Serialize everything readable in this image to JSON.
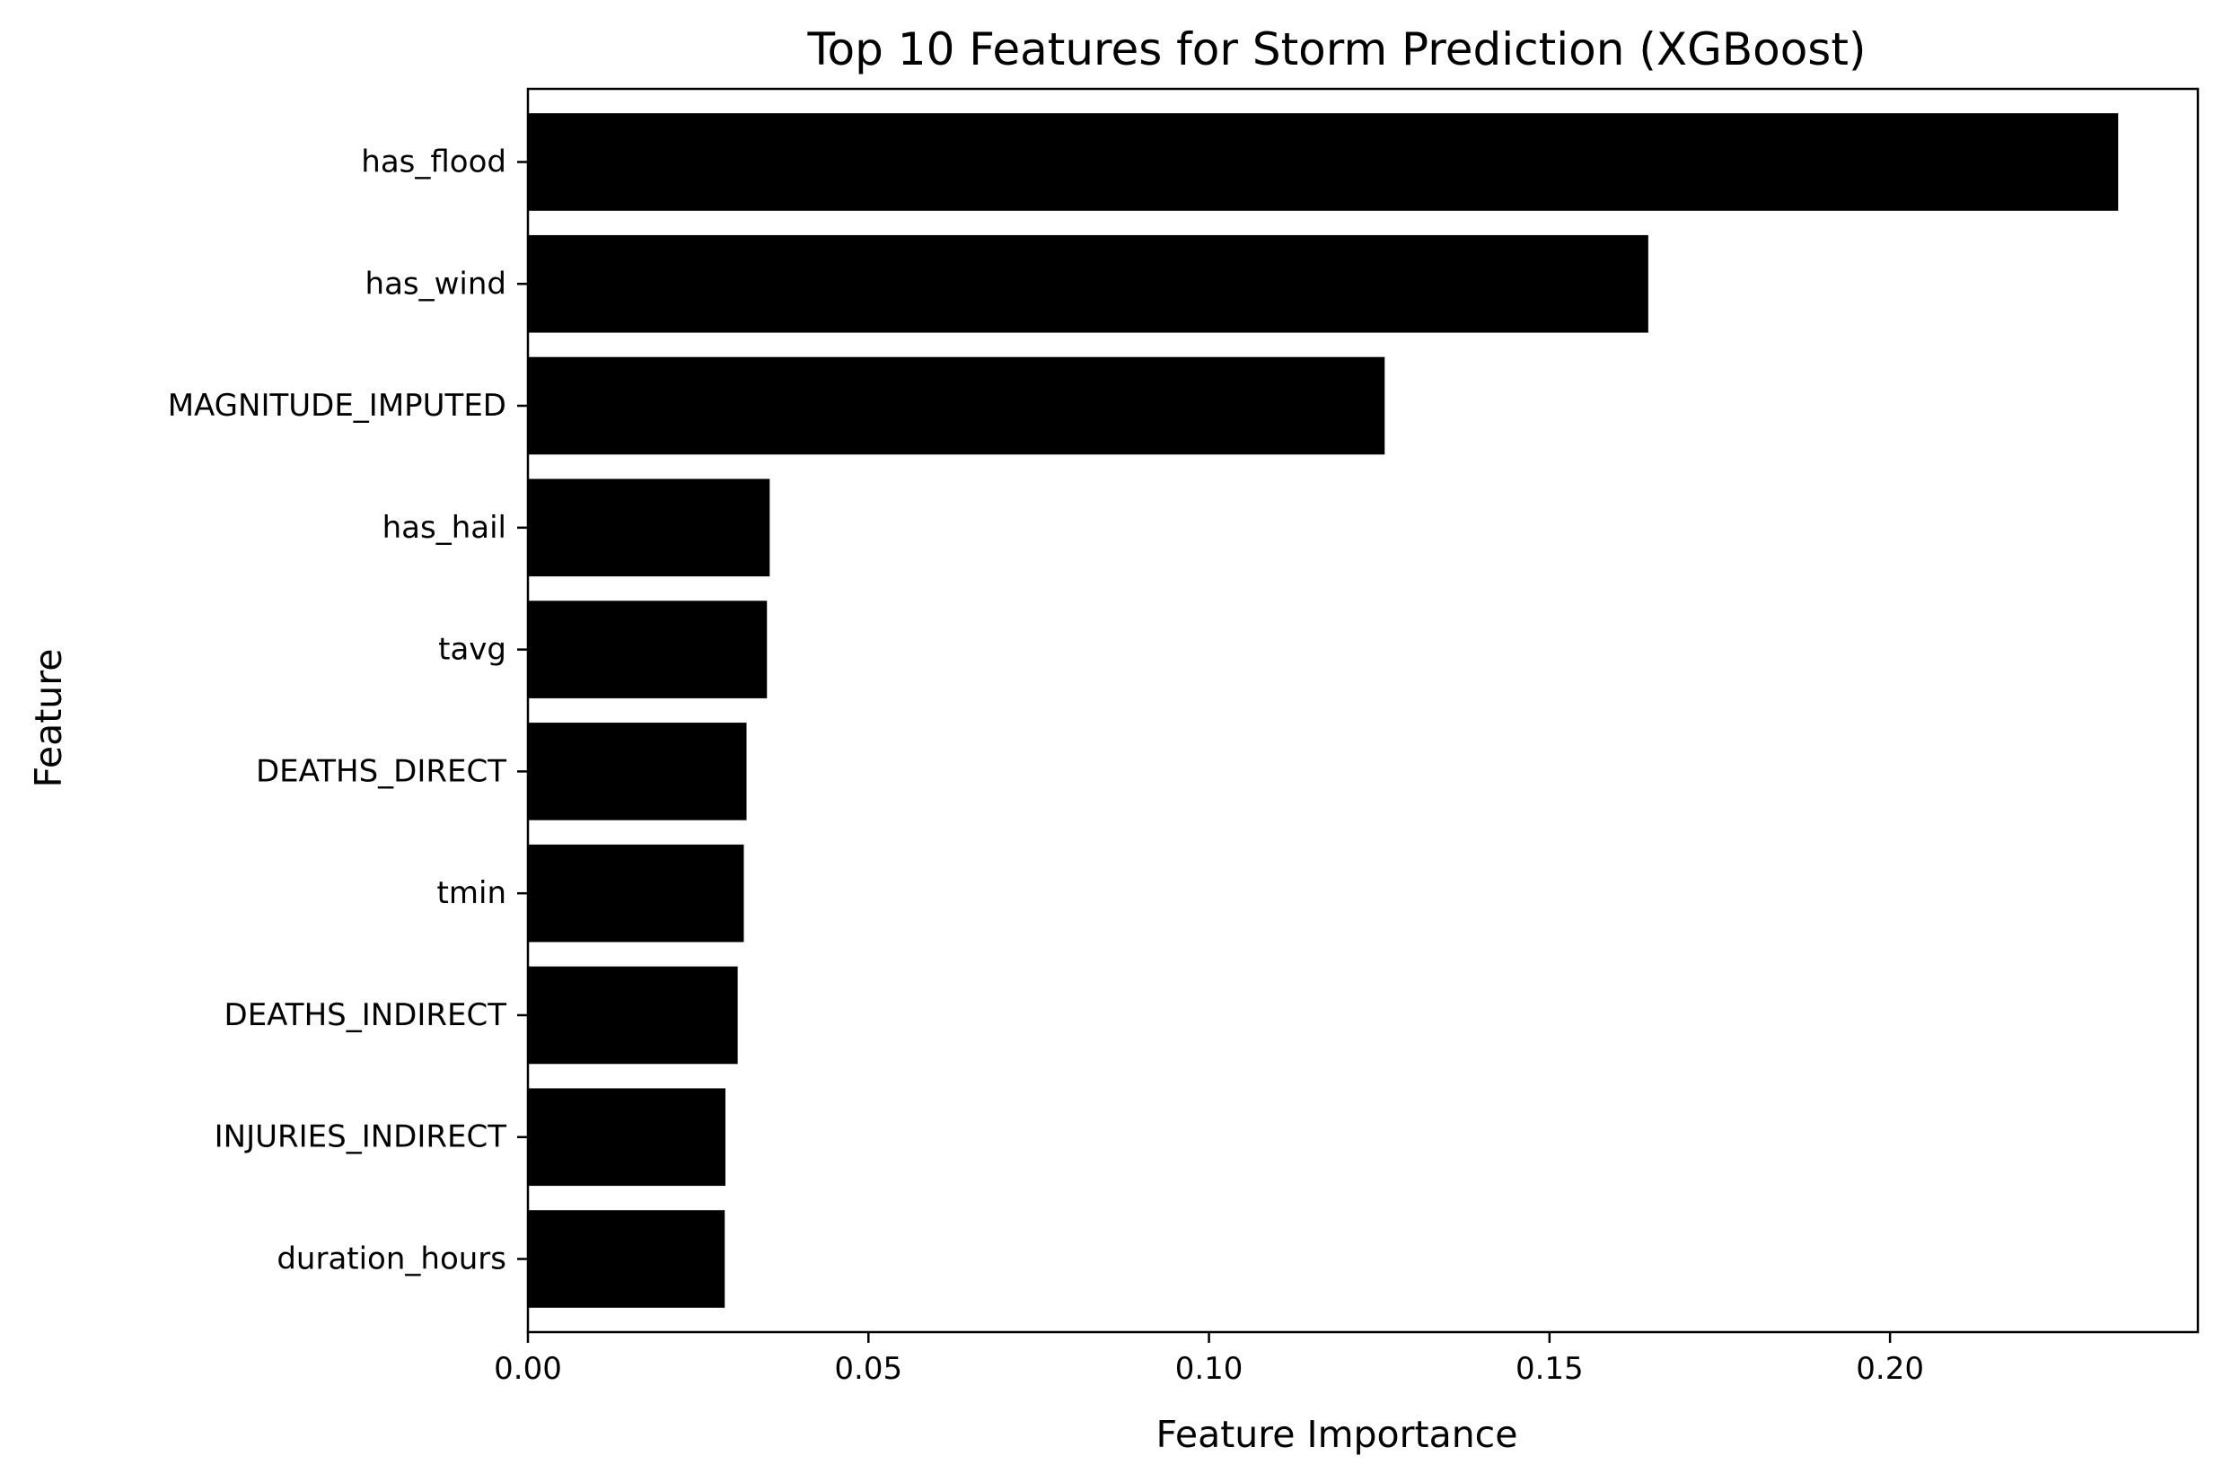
{
  "chart_data": {
    "type": "bar",
    "orientation": "horizontal",
    "title": "Top 10 Features for Storm Prediction (XGBoost)",
    "xlabel": "Feature Importance",
    "ylabel": "Feature",
    "categories": [
      "has_flood",
      "has_wind",
      "MAGNITUDE_IMPUTED",
      "has_hail",
      "tavg",
      "DEATHS_DIRECT",
      "tmin",
      "DEATHS_INDIRECT",
      "INJURIES_INDIRECT",
      "duration_hours"
    ],
    "values": [
      0.2335,
      0.1645,
      0.1258,
      0.0355,
      0.0351,
      0.0321,
      0.0317,
      0.0308,
      0.029,
      0.0289
    ],
    "xlim": [
      0,
      0.2452
    ],
    "xticks": [
      0.0,
      0.05,
      0.1,
      0.15,
      0.2
    ],
    "xtick_labels": [
      "0.00",
      "0.05",
      "0.10",
      "0.15",
      "0.20"
    ],
    "bar_color": "#000000",
    "grid": false,
    "legend": "none"
  }
}
